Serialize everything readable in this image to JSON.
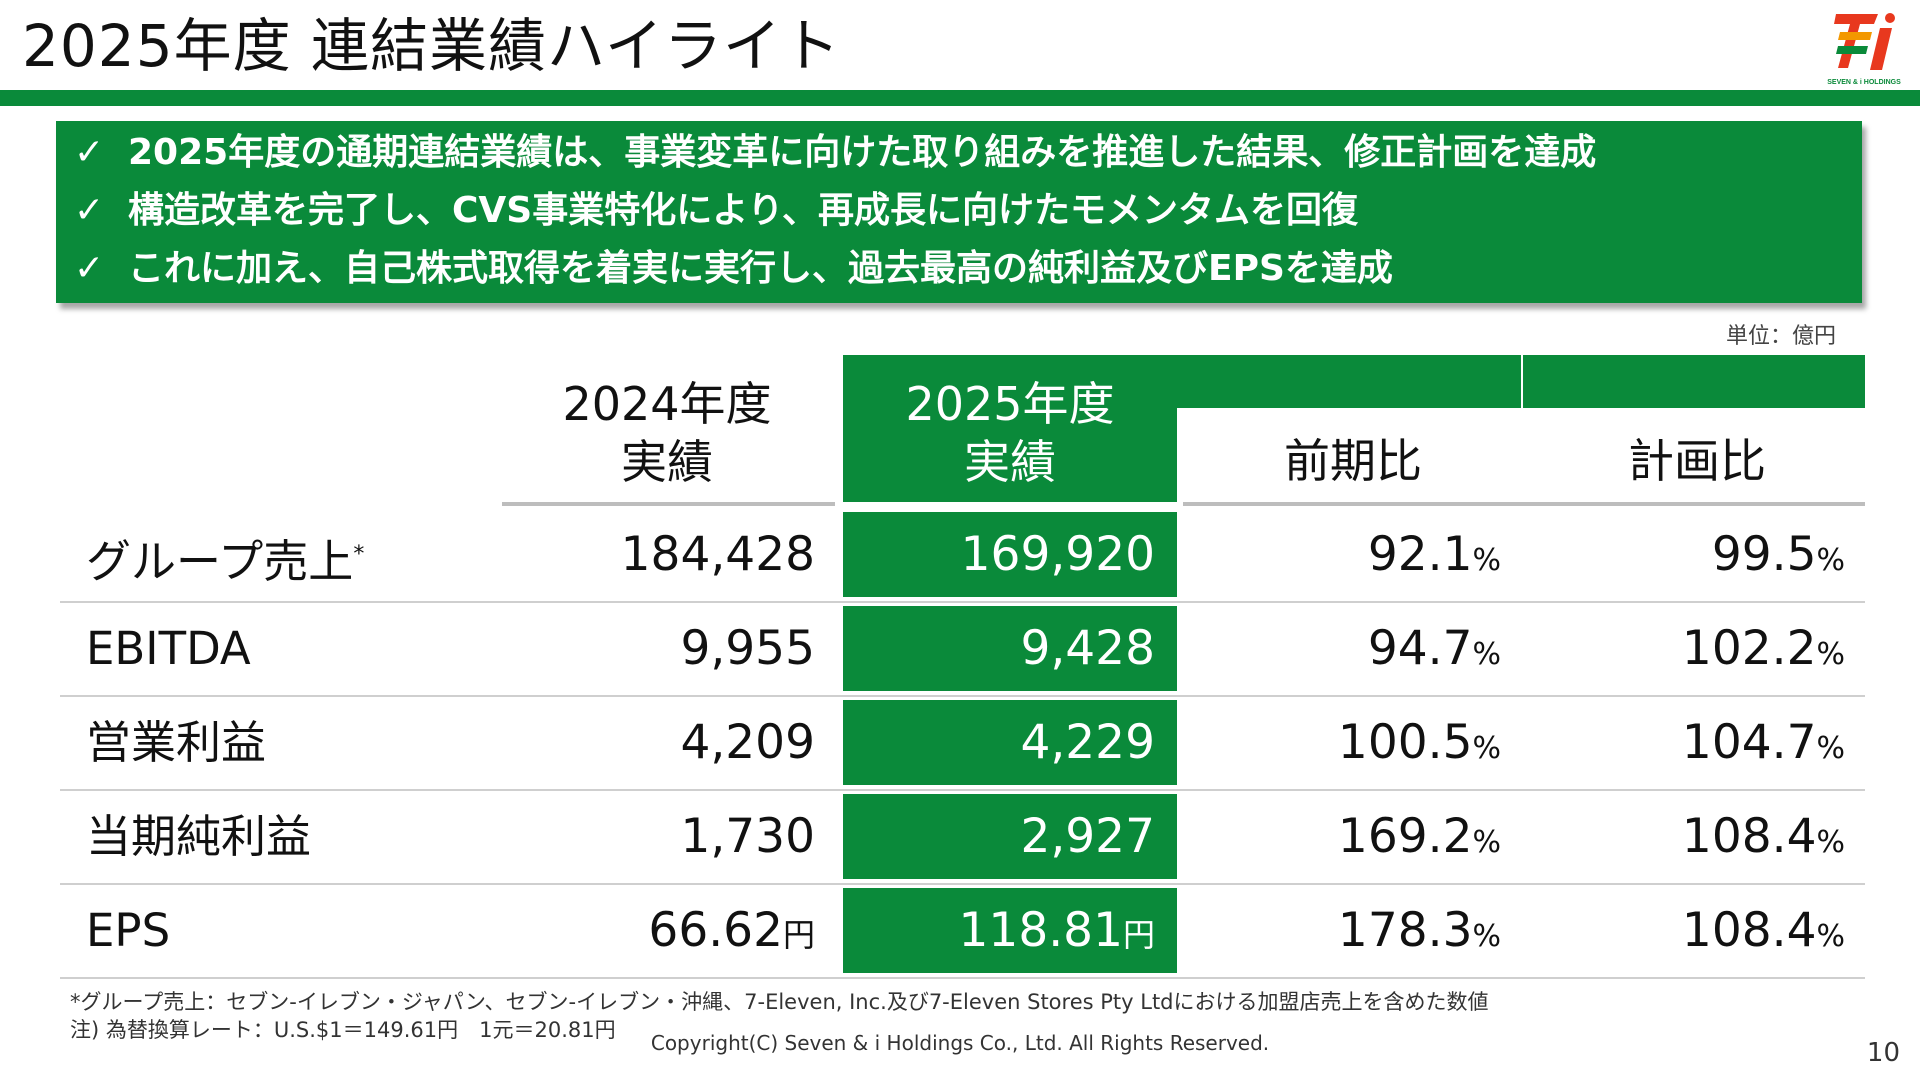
{
  "slide": {
    "title": "2025年度 連結業績ハイライト",
    "brand_color": "#0a8a3a",
    "logo_text": "SEVEN & i HOLDINGS",
    "page_number": "10",
    "copyright": "Copyright(C) Seven & i Holdings Co., Ltd. All Rights Reserved."
  },
  "highlights": [
    "2025年度の通期連結業績は、事業変革に向けた取り組みを推進した結果、修正計画を達成",
    "構造改革を完了し、CVS事業特化により、再成長に向けたモメンタムを回復",
    "これに加え、自己株式取得を着実に実行し、過去最高の純利益及びEPSを達成"
  ],
  "unit_label": "単位：億円",
  "table": {
    "headers": {
      "fy2024_line1": "2024年度",
      "fy2024_line2": "実績",
      "fy2025_line1": "2025年度",
      "fy2025_line2": "実績",
      "yoy": "前期比",
      "vs_plan": "計画比"
    },
    "rows": [
      {
        "label": "グループ売上",
        "mark": "*",
        "fy2024": "184,428",
        "fy2024_unit": "",
        "fy2025": "169,920",
        "fy2025_unit": "",
        "yoy": "92.1",
        "vs_plan": "99.5"
      },
      {
        "label": "EBITDA",
        "mark": "",
        "fy2024": "9,955",
        "fy2024_unit": "",
        "fy2025": "9,428",
        "fy2025_unit": "",
        "yoy": "94.7",
        "vs_plan": "102.2"
      },
      {
        "label": "営業利益",
        "mark": "",
        "fy2024": "4,209",
        "fy2024_unit": "",
        "fy2025": "4,229",
        "fy2025_unit": "",
        "yoy": "100.5",
        "vs_plan": "104.7"
      },
      {
        "label": "当期純利益",
        "mark": "",
        "fy2024": "1,730",
        "fy2024_unit": "",
        "fy2025": "2,927",
        "fy2025_unit": "",
        "yoy": "169.2",
        "vs_plan": "108.4"
      },
      {
        "label": "EPS",
        "mark": "",
        "fy2024": "66.62",
        "fy2024_unit": "円",
        "fy2025": "118.81",
        "fy2025_unit": "円",
        "yoy": "178.3",
        "vs_plan": "108.4"
      }
    ],
    "percent_sign": "%"
  },
  "footnotes": [
    "*グループ売上：セブン‐イレブン・ジャパン、セブン‐イレブン・沖縄、7-Eleven, Inc.及び7-Eleven Stores Pty Ltdにおける加盟店売上を含めた数値",
    "注) 為替換算レート：U.S.$1＝149.61円　1元＝20.81円"
  ]
}
